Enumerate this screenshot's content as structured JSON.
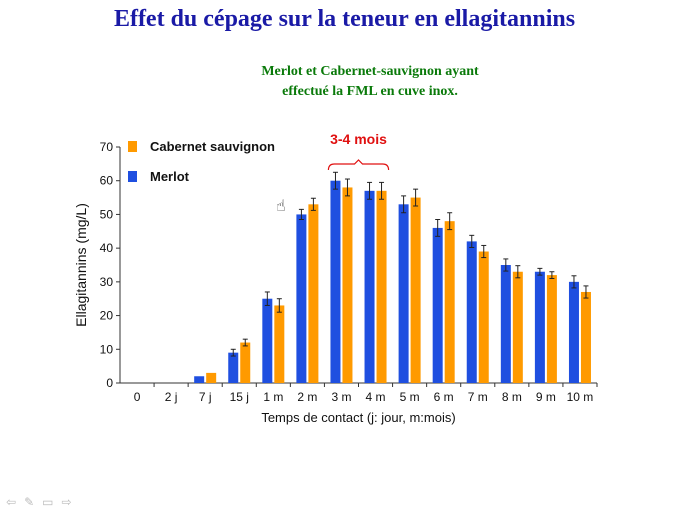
{
  "slide": {
    "title": "Effet du cépage sur la teneur en ellagitannins",
    "subtitle_line1": "Merlot et Cabernet-sauvignon ayant",
    "subtitle_line2": "effectué la FML en cuve inox."
  },
  "chart_data": {
    "type": "bar",
    "title": "",
    "xlabel": "Temps de contact (j: jour, m:mois)",
    "ylabel": "Ellagitannins (mg/L)",
    "ylim": [
      0,
      70
    ],
    "yticks": [
      0,
      10,
      20,
      30,
      40,
      50,
      60,
      70
    ],
    "categories": [
      "0",
      "2 j",
      "7 j",
      "15 j",
      "1 m",
      "2 m",
      "3 m",
      "4 m",
      "5 m",
      "6 m",
      "7 m",
      "8 m",
      "9 m",
      "10 m"
    ],
    "series": [
      {
        "name": "Merlot",
        "color": "#1f4fe0",
        "values": [
          0,
          0,
          2,
          9,
          25,
          50,
          60,
          57,
          53,
          46,
          42,
          35,
          33,
          30
        ],
        "errors": [
          0,
          0,
          0,
          1,
          2,
          1.5,
          2.5,
          2.5,
          2.5,
          2.5,
          1.8,
          1.8,
          1,
          1.8
        ]
      },
      {
        "name": "Cabernet sauvignon",
        "color": "#ff9a00",
        "values": [
          0,
          0,
          3,
          12,
          23,
          53,
          58,
          57,
          55,
          48,
          39,
          33,
          32,
          27
        ],
        "errors": [
          0,
          0,
          0,
          1,
          2,
          1.8,
          2.5,
          2.5,
          2.5,
          2.5,
          1.8,
          1.8,
          1,
          1.8
        ]
      }
    ],
    "legend": {
      "placement": "top-left",
      "entries": [
        "Cabernet sauvignon",
        "Merlot"
      ]
    },
    "annotations": [
      {
        "text": "3-4 mois",
        "color": "#e01010",
        "from_category": "3 m",
        "to_category": "4 m"
      }
    ],
    "grid": false
  },
  "nav": {
    "prev_icon": "arrow-left-icon",
    "pen_icon": "pen-icon",
    "menu_icon": "menu-icon",
    "next_icon": "arrow-right-icon"
  }
}
